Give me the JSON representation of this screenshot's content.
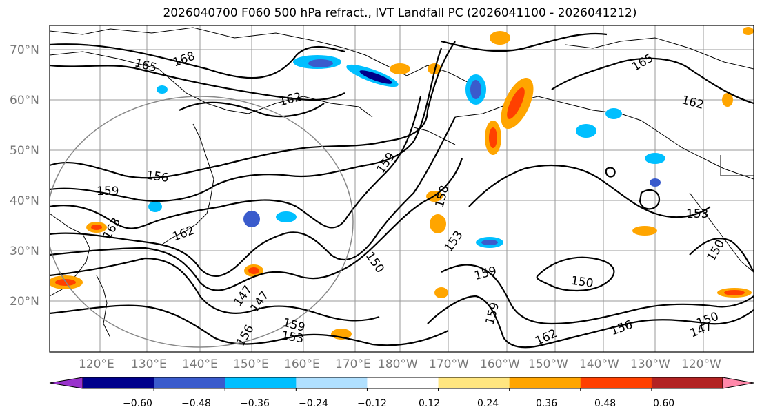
{
  "title": "2026040700 F060 500 hPa refract., IVT Landfall PC (2026041100 - 2026041212)",
  "lat_labels": [
    "70°N",
    "60°N",
    "50°N",
    "40°N",
    "30°N",
    "20°N"
  ],
  "lon_labels": [
    "120°E",
    "130°E",
    "140°E",
    "150°E",
    "160°E",
    "170°E",
    "180°W",
    "170°W",
    "160°W",
    "150°W",
    "140°W",
    "130°W",
    "120°W"
  ],
  "contour_labels": [
    "165",
    "168",
    "162",
    "165",
    "162",
    "159",
    "156",
    "159",
    "163",
    "162",
    "158",
    "153",
    "150",
    "159",
    "150",
    "153",
    "150",
    "147",
    "147",
    "159",
    "156",
    "153",
    "159",
    "162",
    "156",
    "147",
    "150"
  ],
  "colorbar": {
    "tick_labels": [
      "−0.60",
      "−0.48",
      "−0.36",
      "−0.24",
      "−0.12",
      "0.12",
      "0.24",
      "0.36",
      "0.48",
      "0.60"
    ],
    "colors": [
      "#9932cc",
      "#00008b",
      "#3a5bcc",
      "#00bfff",
      "#b0e0ff",
      "#ffffff",
      "#ffe680",
      "#ffa500",
      "#ff4000",
      "#b22222",
      "#ff88aa"
    ]
  },
  "colors": {
    "land_outline": "#000000",
    "gridline": "#9a9a9a",
    "contour": "#000000",
    "circle": "#888888"
  }
}
